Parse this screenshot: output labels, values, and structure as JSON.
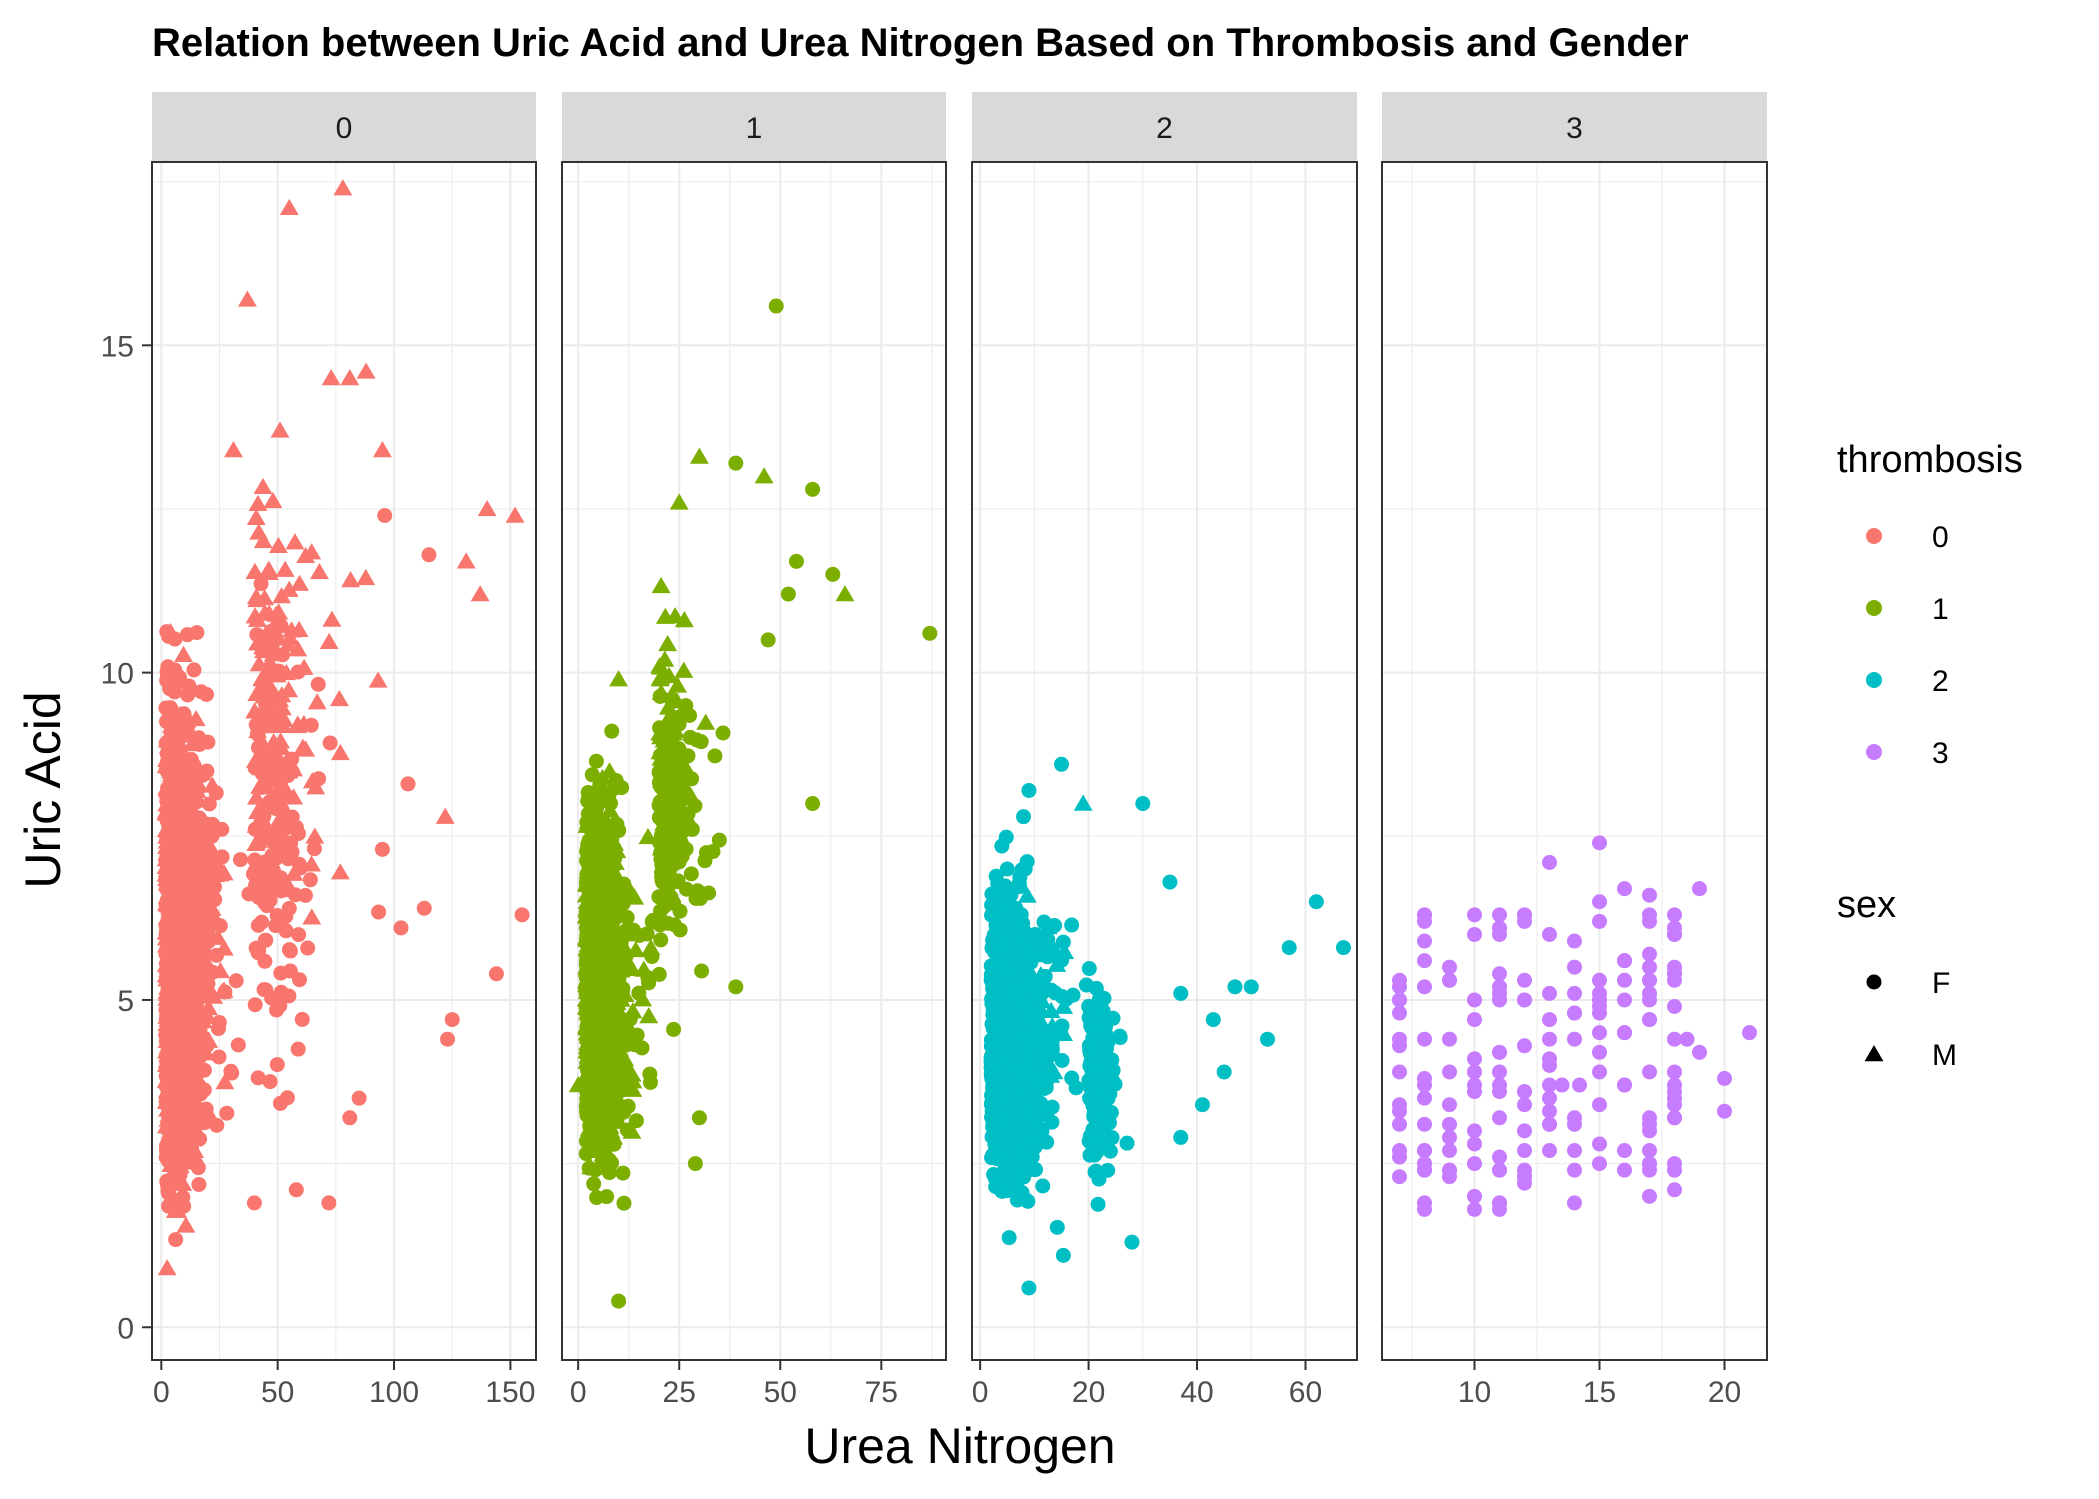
{
  "chart_data": {
    "type": "scatter",
    "title": "Relation between Uric Acid and Urea Nitrogen Based on Thrombosis and Gender",
    "xlabel": "Urea Nitrogen",
    "ylabel": "Uric Acid",
    "ylim": [
      -0.5,
      17.8
    ],
    "yticks": [
      0,
      5,
      10,
      15
    ],
    "grid": true,
    "facet_by": "thrombosis",
    "panels": [
      {
        "strip": "0",
        "xlim": [
          -4,
          161
        ],
        "xticks": [
          0,
          50,
          100,
          150
        ],
        "color": "#F8766D",
        "clusters": [
          {
            "x": [
              2,
              50
            ],
            "y": [
              0.5,
              11.5
            ],
            "n": 1100,
            "sex": "F"
          },
          {
            "x": [
              2,
              45
            ],
            "y": [
              0.5,
              11.0
            ],
            "n": 800,
            "sex": "M"
          },
          {
            "x": [
              40,
              110
            ],
            "y": [
              2.5,
              12.5
            ],
            "n": 160,
            "sex": "F"
          },
          {
            "x": [
              40,
              120
            ],
            "y": [
              5.0,
              14.5
            ],
            "n": 120,
            "sex": "M"
          }
        ],
        "points": [
          {
            "x": 78,
            "y": 17.4,
            "sex": "M"
          },
          {
            "x": 55,
            "y": 17.1,
            "sex": "M"
          },
          {
            "x": 37,
            "y": 15.7,
            "sex": "M"
          },
          {
            "x": 88,
            "y": 14.6,
            "sex": "M"
          },
          {
            "x": 73,
            "y": 14.5,
            "sex": "M"
          },
          {
            "x": 81,
            "y": 14.5,
            "sex": "M"
          },
          {
            "x": 95,
            "y": 13.4,
            "sex": "M"
          },
          {
            "x": 31,
            "y": 13.4,
            "sex": "M"
          },
          {
            "x": 51,
            "y": 13.7,
            "sex": "M"
          },
          {
            "x": 140,
            "y": 12.5,
            "sex": "M"
          },
          {
            "x": 152,
            "y": 12.4,
            "sex": "M"
          },
          {
            "x": 131,
            "y": 11.7,
            "sex": "M"
          },
          {
            "x": 137,
            "y": 11.2,
            "sex": "M"
          },
          {
            "x": 122,
            "y": 7.8,
            "sex": "M"
          },
          {
            "x": 96,
            "y": 12.4,
            "sex": "F"
          },
          {
            "x": 115,
            "y": 11.8,
            "sex": "F"
          },
          {
            "x": 155,
            "y": 6.3,
            "sex": "F"
          },
          {
            "x": 144,
            "y": 5.4,
            "sex": "F"
          },
          {
            "x": 125,
            "y": 4.7,
            "sex": "F"
          },
          {
            "x": 123,
            "y": 4.4,
            "sex": "F"
          },
          {
            "x": 113,
            "y": 6.4,
            "sex": "F"
          },
          {
            "x": 103,
            "y": 6.1,
            "sex": "F"
          },
          {
            "x": 106,
            "y": 8.3,
            "sex": "F"
          },
          {
            "x": 95,
            "y": 7.3,
            "sex": "F"
          },
          {
            "x": 85,
            "y": 3.5,
            "sex": "F"
          },
          {
            "x": 81,
            "y": 3.2,
            "sex": "F"
          },
          {
            "x": 72,
            "y": 1.9,
            "sex": "F"
          },
          {
            "x": 58,
            "y": 2.1,
            "sex": "F"
          },
          {
            "x": 40,
            "y": 1.9,
            "sex": "F"
          }
        ]
      },
      {
        "strip": "1",
        "xlim": [
          -4,
          91
        ],
        "xticks": [
          0,
          25,
          50,
          75
        ],
        "color": "#7CAE00",
        "clusters": [
          {
            "x": [
              2,
              28
            ],
            "y": [
              1.0,
              9.5
            ],
            "n": 800,
            "sex": "F"
          },
          {
            "x": [
              2,
              26
            ],
            "y": [
              1.5,
              9.0
            ],
            "n": 650,
            "sex": "M"
          },
          {
            "x": [
              20,
              50
            ],
            "y": [
              5.0,
              10.5
            ],
            "n": 150,
            "sex": "F"
          },
          {
            "x": [
              20,
              40
            ],
            "y": [
              6.0,
              12.0
            ],
            "n": 60,
            "sex": "M"
          }
        ],
        "points": [
          {
            "x": 49,
            "y": 15.6,
            "sex": "F"
          },
          {
            "x": 30,
            "y": 13.3,
            "sex": "M"
          },
          {
            "x": 39,
            "y": 13.2,
            "sex": "F"
          },
          {
            "x": 46,
            "y": 13.0,
            "sex": "M"
          },
          {
            "x": 25,
            "y": 12.6,
            "sex": "M"
          },
          {
            "x": 58,
            "y": 12.8,
            "sex": "F"
          },
          {
            "x": 54,
            "y": 11.7,
            "sex": "F"
          },
          {
            "x": 63,
            "y": 11.5,
            "sex": "F"
          },
          {
            "x": 66,
            "y": 11.2,
            "sex": "M"
          },
          {
            "x": 52,
            "y": 11.2,
            "sex": "F"
          },
          {
            "x": 87,
            "y": 10.6,
            "sex": "F"
          },
          {
            "x": 58,
            "y": 8.0,
            "sex": "F"
          },
          {
            "x": 47,
            "y": 10.5,
            "sex": "F"
          },
          {
            "x": 10,
            "y": 9.9,
            "sex": "M"
          },
          {
            "x": 10,
            "y": 0.4,
            "sex": "F"
          },
          {
            "x": 39,
            "y": 5.2,
            "sex": "F"
          },
          {
            "x": 30,
            "y": 3.2,
            "sex": "F"
          },
          {
            "x": 29,
            "y": 2.5,
            "sex": "F"
          },
          {
            "x": 0,
            "y": 3.7,
            "sex": "M"
          }
        ]
      },
      {
        "strip": "2",
        "xlim": [
          -1.5,
          69.5
        ],
        "xticks": [
          0,
          20,
          40,
          60
        ],
        "color": "#00BFC4",
        "clusters": [
          {
            "x": [
              2,
              28
            ],
            "y": [
              0.8,
              8.0
            ],
            "n": 800,
            "sex": "F"
          },
          {
            "x": [
              8,
              26
            ],
            "y": [
              2.5,
              7.0
            ],
            "n": 50,
            "sex": "M"
          },
          {
            "x": [
              20,
              36
            ],
            "y": [
              1.5,
              6.0
            ],
            "n": 120,
            "sex": "F"
          }
        ],
        "points": [
          {
            "x": 15,
            "y": 8.6,
            "sex": "F"
          },
          {
            "x": 19,
            "y": 8.0,
            "sex": "M"
          },
          {
            "x": 30,
            "y": 8.0,
            "sex": "F"
          },
          {
            "x": 9,
            "y": 8.2,
            "sex": "F"
          },
          {
            "x": 8,
            "y": 7.8,
            "sex": "F"
          },
          {
            "x": 5,
            "y": 7.0,
            "sex": "F"
          },
          {
            "x": 62,
            "y": 6.5,
            "sex": "F"
          },
          {
            "x": 67,
            "y": 5.8,
            "sex": "F"
          },
          {
            "x": 57,
            "y": 5.8,
            "sex": "F"
          },
          {
            "x": 47,
            "y": 5.2,
            "sex": "F"
          },
          {
            "x": 50,
            "y": 5.2,
            "sex": "F"
          },
          {
            "x": 43,
            "y": 4.7,
            "sex": "F"
          },
          {
            "x": 53,
            "y": 4.4,
            "sex": "F"
          },
          {
            "x": 45,
            "y": 3.9,
            "sex": "F"
          },
          {
            "x": 41,
            "y": 3.4,
            "sex": "F"
          },
          {
            "x": 35,
            "y": 6.8,
            "sex": "F"
          },
          {
            "x": 37,
            "y": 5.1,
            "sex": "F"
          },
          {
            "x": 9,
            "y": 0.6,
            "sex": "F"
          },
          {
            "x": 28,
            "y": 1.3,
            "sex": "F"
          },
          {
            "x": 37,
            "y": 2.9,
            "sex": "F"
          }
        ]
      },
      {
        "strip": "3",
        "xlim": [
          6.3,
          21.7
        ],
        "xticks": [
          10,
          15,
          20
        ],
        "color": "#C77CFF",
        "grid_x": [
          7,
          8,
          9,
          10,
          11,
          12,
          13,
          14,
          15,
          16,
          17,
          18
        ],
        "grid_y": [
          1.8,
          6.4
        ],
        "n": 170,
        "points": [
          {
            "x": 15,
            "y": 7.4,
            "sex": "F"
          },
          {
            "x": 13,
            "y": 7.1,
            "sex": "F"
          },
          {
            "x": 16,
            "y": 6.7,
            "sex": "F"
          },
          {
            "x": 17,
            "y": 6.6,
            "sex": "F"
          },
          {
            "x": 19,
            "y": 6.7,
            "sex": "F"
          },
          {
            "x": 21,
            "y": 4.5,
            "sex": "F"
          },
          {
            "x": 20,
            "y": 3.8,
            "sex": "F"
          },
          {
            "x": 20,
            "y": 3.3,
            "sex": "F"
          },
          {
            "x": 19,
            "y": 4.2,
            "sex": "F"
          },
          {
            "x": 18,
            "y": 2.4,
            "sex": "F"
          },
          {
            "x": 17,
            "y": 2.0,
            "sex": "F"
          },
          {
            "x": 7,
            "y": 3.1,
            "sex": "F"
          },
          {
            "x": 7,
            "y": 2.6,
            "sex": "F"
          },
          {
            "x": 9,
            "y": 5.3,
            "sex": "F"
          },
          {
            "x": 11,
            "y": 1.8,
            "sex": "F"
          },
          {
            "x": 15,
            "y": 6.5,
            "sex": "F"
          },
          {
            "x": 14,
            "y": 4.4,
            "sex": "F"
          },
          {
            "x": 18.5,
            "y": 4.4,
            "sex": "F"
          },
          {
            "x": 13.5,
            "y": 3.7,
            "sex": "F"
          },
          {
            "x": 14.2,
            "y": 3.7,
            "sex": "F"
          }
        ]
      }
    ],
    "legends": [
      {
        "title": "thrombosis",
        "position": "right",
        "entries": [
          {
            "label": "0",
            "color": "#F8766D"
          },
          {
            "label": "1",
            "color": "#7CAE00"
          },
          {
            "label": "2",
            "color": "#00BFC4"
          },
          {
            "label": "3",
            "color": "#C77CFF"
          }
        ]
      },
      {
        "title": "sex",
        "position": "right",
        "entries": [
          {
            "label": "F",
            "shape": "circle"
          },
          {
            "label": "M",
            "shape": "triangle"
          }
        ]
      }
    ]
  },
  "colors": {
    "strip_fill": "#D9D9D9",
    "grid": "#EBEBEB",
    "panel_border": "#333333",
    "tick": "#4d4d4d"
  }
}
